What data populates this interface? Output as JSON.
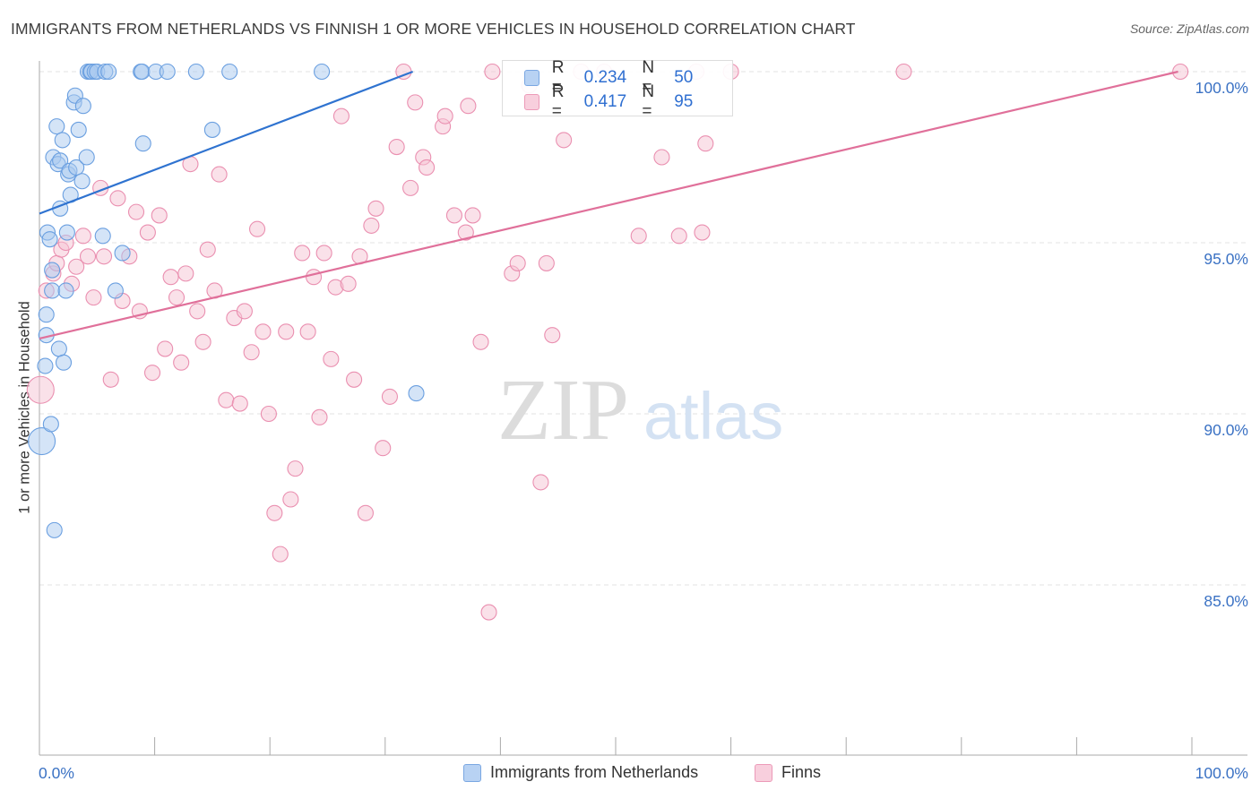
{
  "title": "IMMIGRANTS FROM NETHERLANDS VS FINNISH 1 OR MORE VEHICLES IN HOUSEHOLD CORRELATION CHART",
  "source": "Source: ZipAtlas.com",
  "watermark": {
    "zip": "ZIP",
    "atlas": "atlas"
  },
  "colors": {
    "blue": "#2f73d0",
    "blue_fill": "#a9c9f0",
    "blue_stroke": "#6a9fe0",
    "pink": "#e0709a",
    "pink_fill": "#f5c3d4",
    "pink_stroke": "#ea8fb0",
    "axis_text": "#3b72c4",
    "grid": "#e3e3e3"
  },
  "legend": {
    "rows": [
      {
        "r_label": "R =",
        "r_value": "0.234",
        "n_label": "N =",
        "n_value": "50"
      },
      {
        "r_label": "R =",
        "r_value": "0.417",
        "n_label": "N =",
        "n_value": "95"
      }
    ],
    "bottom": [
      "Immigrants from Netherlands",
      "Finns"
    ]
  },
  "chart_data": {
    "type": "scatter",
    "title": "IMMIGRANTS FROM NETHERLANDS VS FINNISH 1 OR MORE VEHICLES IN HOUSEHOLD CORRELATION CHART",
    "xlabel": "",
    "ylabel": "1 or more Vehicles in Household",
    "xlim": [
      0,
      100
    ],
    "ylim": [
      80.5,
      100.7
    ],
    "x_tick_labels": [
      "0.0%",
      "100.0%"
    ],
    "y_ticks": [
      100,
      95,
      90,
      85
    ],
    "y_tick_labels": [
      "100.0%",
      "95.0%",
      "90.0%",
      "85.0%"
    ],
    "grid": true,
    "legend_position": "top-center",
    "series": [
      {
        "name": "Immigrants from Netherlands",
        "color": "#2f73d0",
        "r": 0.234,
        "n": 50,
        "trend": {
          "x": [
            0,
            32.4
          ],
          "y": [
            95.85,
            100.0
          ]
        },
        "points": [
          [
            0.2,
            89.2
          ],
          [
            0.5,
            91.4
          ],
          [
            0.6,
            92.3
          ],
          [
            0.6,
            92.9
          ],
          [
            0.7,
            95.3
          ],
          [
            0.9,
            95.1
          ],
          [
            1.0,
            89.7
          ],
          [
            1.1,
            94.2
          ],
          [
            1.1,
            93.6
          ],
          [
            1.2,
            97.5
          ],
          [
            1.3,
            86.6
          ],
          [
            1.5,
            98.4
          ],
          [
            1.6,
            97.3
          ],
          [
            1.7,
            91.9
          ],
          [
            1.8,
            96.0
          ],
          [
            1.8,
            97.4
          ],
          [
            2.0,
            98.0
          ],
          [
            2.1,
            91.5
          ],
          [
            2.3,
            93.6
          ],
          [
            2.4,
            95.3
          ],
          [
            2.5,
            97.0
          ],
          [
            2.6,
            97.1
          ],
          [
            2.7,
            96.4
          ],
          [
            3.0,
            99.1
          ],
          [
            3.1,
            99.3
          ],
          [
            3.2,
            97.2
          ],
          [
            3.4,
            98.3
          ],
          [
            3.7,
            96.8
          ],
          [
            3.8,
            99.0
          ],
          [
            4.1,
            97.5
          ],
          [
            4.2,
            100.0
          ],
          [
            4.4,
            100.0
          ],
          [
            4.5,
            100.0
          ],
          [
            4.8,
            100.0
          ],
          [
            5.0,
            100.0
          ],
          [
            5.5,
            95.2
          ],
          [
            5.7,
            100.0
          ],
          [
            6.0,
            100.0
          ],
          [
            6.6,
            93.6
          ],
          [
            7.2,
            94.7
          ],
          [
            8.8,
            100.0
          ],
          [
            8.9,
            100.0
          ],
          [
            9.0,
            97.9
          ],
          [
            10.1,
            100.0
          ],
          [
            11.1,
            100.0
          ],
          [
            13.6,
            100.0
          ],
          [
            15.0,
            98.3
          ],
          [
            16.5,
            100.0
          ],
          [
            24.5,
            100.0
          ],
          [
            32.7,
            90.6
          ]
        ]
      },
      {
        "name": "Finns",
        "color": "#e0709a",
        "r": 0.417,
        "n": 95,
        "trend": {
          "x": [
            0,
            98.8
          ],
          "y": [
            92.2,
            100.0
          ]
        },
        "points": [
          [
            0.1,
            90.7
          ],
          [
            0.6,
            93.6
          ],
          [
            1.2,
            94.1
          ],
          [
            1.5,
            94.4
          ],
          [
            1.9,
            94.8
          ],
          [
            2.3,
            95.0
          ],
          [
            2.8,
            93.8
          ],
          [
            3.2,
            94.3
          ],
          [
            3.8,
            95.2
          ],
          [
            4.2,
            94.6
          ],
          [
            4.7,
            93.4
          ],
          [
            5.3,
            96.6
          ],
          [
            5.6,
            94.6
          ],
          [
            6.2,
            91.0
          ],
          [
            6.8,
            96.3
          ],
          [
            7.2,
            93.3
          ],
          [
            7.8,
            94.6
          ],
          [
            8.4,
            95.9
          ],
          [
            8.7,
            93.0
          ],
          [
            9.4,
            95.3
          ],
          [
            9.8,
            91.2
          ],
          [
            10.4,
            95.8
          ],
          [
            10.9,
            91.9
          ],
          [
            11.4,
            94.0
          ],
          [
            11.9,
            93.4
          ],
          [
            12.3,
            91.5
          ],
          [
            12.7,
            94.1
          ],
          [
            13.1,
            97.3
          ],
          [
            13.7,
            93.0
          ],
          [
            14.2,
            92.1
          ],
          [
            14.6,
            94.8
          ],
          [
            15.2,
            93.6
          ],
          [
            15.6,
            97.0
          ],
          [
            16.2,
            90.4
          ],
          [
            16.9,
            92.8
          ],
          [
            17.4,
            90.3
          ],
          [
            17.8,
            93.0
          ],
          [
            18.4,
            91.8
          ],
          [
            18.9,
            95.4
          ],
          [
            19.4,
            92.4
          ],
          [
            19.9,
            90.0
          ],
          [
            20.4,
            87.1
          ],
          [
            20.9,
            85.9
          ],
          [
            21.4,
            92.4
          ],
          [
            21.8,
            87.5
          ],
          [
            22.2,
            88.4
          ],
          [
            22.8,
            94.7
          ],
          [
            23.3,
            92.4
          ],
          [
            23.8,
            94.0
          ],
          [
            24.3,
            89.9
          ],
          [
            24.7,
            94.7
          ],
          [
            25.3,
            91.6
          ],
          [
            25.7,
            93.7
          ],
          [
            26.2,
            98.7
          ],
          [
            26.8,
            93.8
          ],
          [
            27.3,
            91.0
          ],
          [
            27.8,
            94.6
          ],
          [
            28.3,
            87.1
          ],
          [
            28.8,
            95.5
          ],
          [
            29.2,
            96.0
          ],
          [
            29.8,
            89.0
          ],
          [
            30.4,
            90.5
          ],
          [
            31.0,
            97.8
          ],
          [
            31.6,
            100.0
          ],
          [
            32.2,
            96.6
          ],
          [
            32.6,
            99.1
          ],
          [
            33.3,
            97.5
          ],
          [
            33.6,
            97.2
          ],
          [
            35.0,
            98.4
          ],
          [
            35.2,
            98.7
          ],
          [
            36.0,
            95.8
          ],
          [
            37.0,
            95.3
          ],
          [
            37.2,
            99.0
          ],
          [
            37.6,
            95.8
          ],
          [
            38.3,
            92.1
          ],
          [
            39.0,
            84.2
          ],
          [
            39.3,
            100.0
          ],
          [
            41.0,
            94.1
          ],
          [
            41.5,
            94.4
          ],
          [
            42.5,
            99.6
          ],
          [
            43.5,
            88.0
          ],
          [
            44.0,
            94.4
          ],
          [
            44.5,
            92.3
          ],
          [
            45.5,
            98.0
          ],
          [
            47.0,
            100.0
          ],
          [
            49.0,
            100.0
          ],
          [
            52.0,
            95.2
          ],
          [
            54.0,
            97.5
          ],
          [
            55.5,
            95.2
          ],
          [
            57.0,
            100.0
          ],
          [
            57.5,
            95.3
          ],
          [
            57.8,
            97.9
          ],
          [
            60.0,
            100.0
          ],
          [
            75.0,
            100.0
          ],
          [
            99.0,
            100.0
          ]
        ]
      }
    ]
  }
}
